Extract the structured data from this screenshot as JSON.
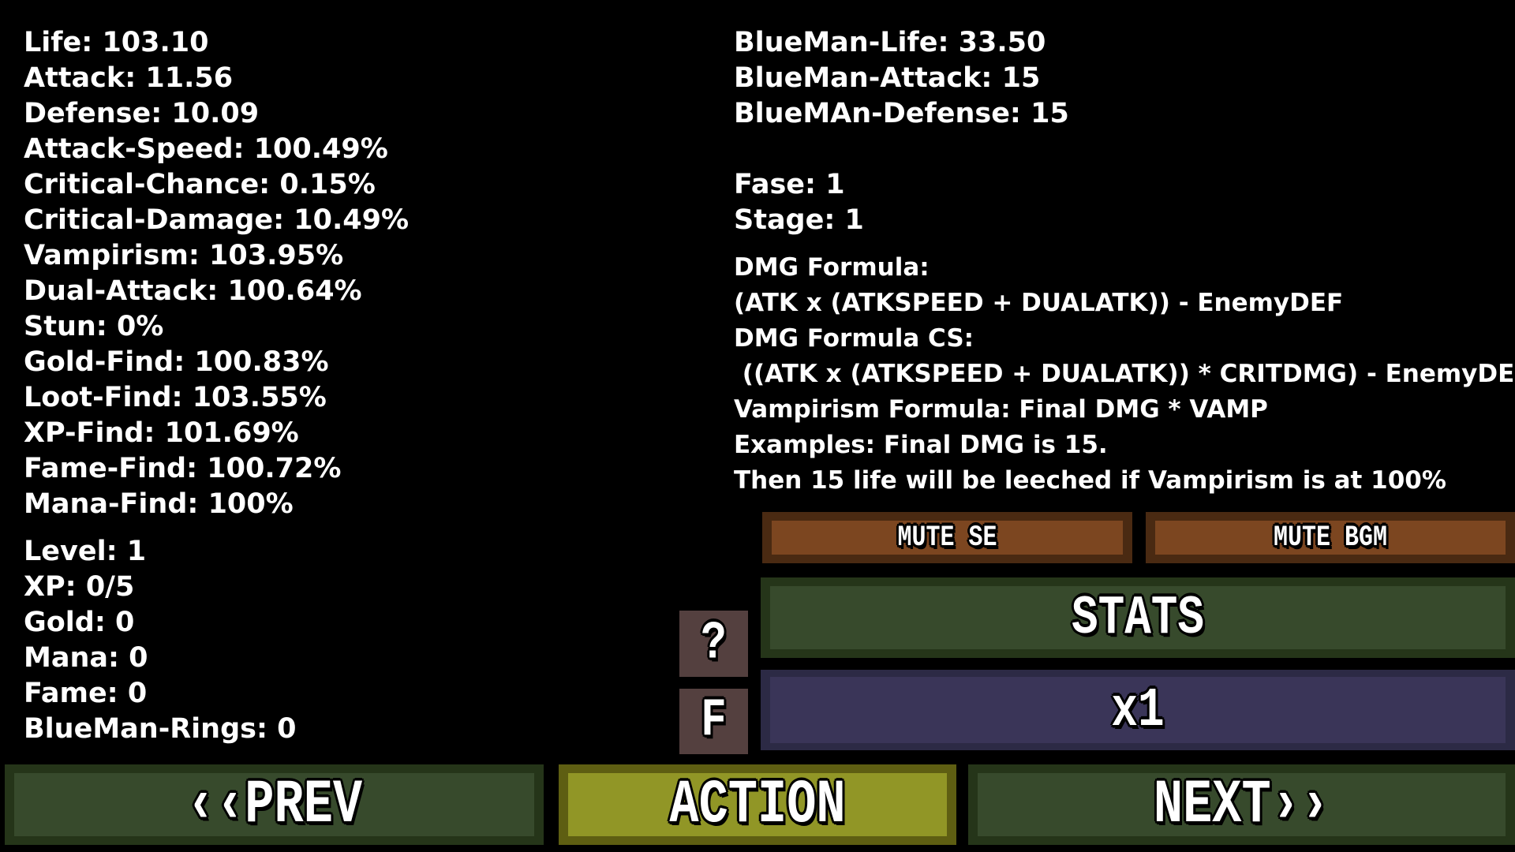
{
  "player_stats": [
    "Life: 103.10",
    "Attack: 11.56",
    "Defense: 10.09",
    "Attack-Speed: 100.49%",
    "Critical-Chance: 0.15%",
    "Critical-Damage: 10.49%",
    "Vampirism: 103.95%",
    "Dual-Attack: 100.64%",
    "Stun: 0%",
    "Gold-Find: 100.83%",
    "Loot-Find: 103.55%",
    "XP-Find: 101.69%",
    "Fame-Find: 100.72%",
    "Mana-Find: 100%"
  ],
  "player_resources": [
    "Level: 1",
    "XP: 0/5",
    "Gold: 0",
    "Mana: 0",
    "Fame: 0",
    "BlueMan-Rings: 0"
  ],
  "enemy_stats": [
    "BlueMan-Life: 33.50",
    "BlueMan-Attack: 15",
    "BlueMAn-Defense: 15"
  ],
  "progress": [
    "Fase: 1",
    "Stage: 1"
  ],
  "formulas": [
    "DMG Formula:",
    "(ATK x (ATKSPEED + DUALATK)) - EnemyDEF",
    "DMG Formula CS:",
    " ((ATK x (ATKSPEED + DUALATK)) * CRITDMG) - EnemyDEF",
    "Vampirism Formula: Final DMG * VAMP",
    "Examples: Final DMG is 15.",
    "Then 15 life will be leeched if Vampirism is at 100%"
  ],
  "buttons": {
    "mute_se": "MUTE SE",
    "mute_bgm": "MUTE BGM",
    "stats": "STATS",
    "speed": "x1",
    "help": "?",
    "f": "F",
    "prev": "‹‹PREV",
    "action": "ACTION",
    "next": "NEXT››"
  }
}
